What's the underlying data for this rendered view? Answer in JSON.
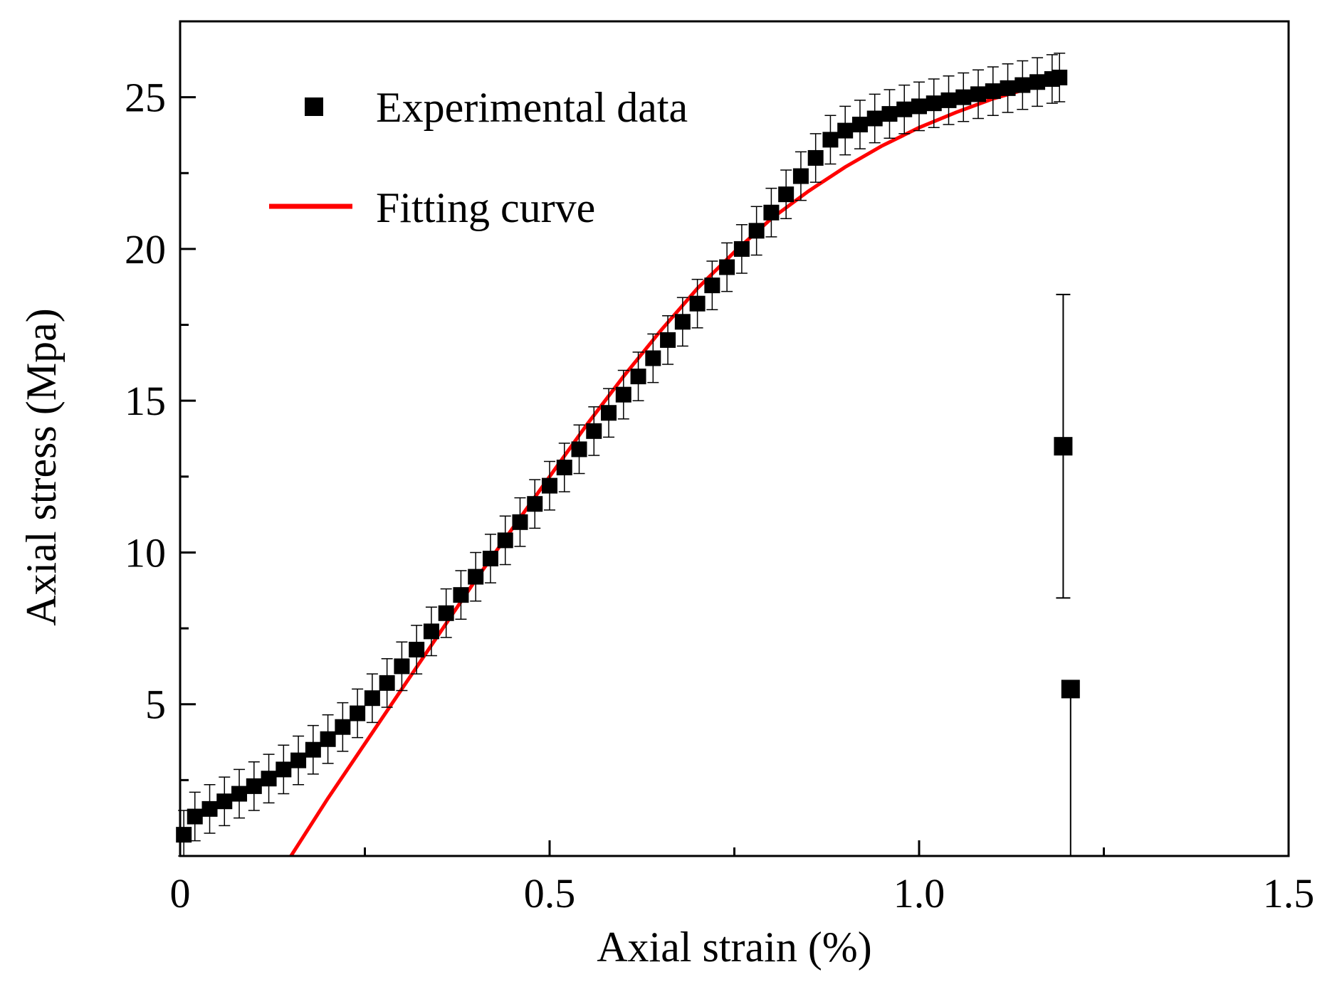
{
  "chart_data": {
    "type": "scatter",
    "title": "",
    "xlabel": "Axial strain (%)",
    "ylabel": "Axial stress (Mpa)",
    "xlim": [
      0,
      1.5
    ],
    "ylim": [
      0,
      27.5
    ],
    "x_ticks": [
      0,
      0.5,
      1.0,
      1.5
    ],
    "x_tick_labels": [
      "0",
      "0.5",
      "1.0",
      "1.5"
    ],
    "y_ticks": [
      5,
      10,
      15,
      20,
      25
    ],
    "y_tick_labels": [
      "5",
      "10",
      "15",
      "20",
      "25"
    ],
    "grid": false,
    "legend_position": "top-left",
    "colors": {
      "experimental": "#000000",
      "fitting": "#ff0000",
      "axis": "#000000"
    },
    "series": [
      {
        "name": "Experimental data",
        "kind": "markers-with-error-bars",
        "marker": "square",
        "x": [
          0.005,
          0.02,
          0.04,
          0.06,
          0.08,
          0.1,
          0.12,
          0.14,
          0.16,
          0.18,
          0.2,
          0.22,
          0.24,
          0.26,
          0.28,
          0.3,
          0.32,
          0.34,
          0.36,
          0.38,
          0.4,
          0.42,
          0.44,
          0.46,
          0.48,
          0.5,
          0.52,
          0.54,
          0.56,
          0.58,
          0.6,
          0.62,
          0.64,
          0.66,
          0.68,
          0.7,
          0.72,
          0.74,
          0.76,
          0.78,
          0.8,
          0.82,
          0.84,
          0.86,
          0.88,
          0.9,
          0.92,
          0.94,
          0.96,
          0.98,
          1.0,
          1.02,
          1.04,
          1.06,
          1.08,
          1.1,
          1.12,
          1.14,
          1.16,
          1.18,
          1.19
        ],
        "y": [
          0.7,
          1.3,
          1.55,
          1.8,
          2.05,
          2.3,
          2.55,
          2.85,
          3.15,
          3.5,
          3.85,
          4.25,
          4.7,
          5.2,
          5.7,
          6.25,
          6.8,
          7.4,
          8.0,
          8.6,
          9.2,
          9.8,
          10.4,
          11.0,
          11.6,
          12.2,
          12.8,
          13.4,
          14.0,
          14.6,
          15.2,
          15.8,
          16.4,
          17.0,
          17.6,
          18.2,
          18.8,
          19.4,
          20.0,
          20.6,
          21.2,
          21.8,
          22.4,
          23.0,
          23.6,
          23.9,
          24.1,
          24.3,
          24.45,
          24.6,
          24.7,
          24.8,
          24.9,
          25.0,
          25.1,
          25.2,
          25.3,
          25.4,
          25.5,
          25.6,
          25.65
        ],
        "error": 0.8
      },
      {
        "name": "Fitting curve",
        "kind": "line",
        "x": [
          0.15,
          0.2,
          0.25,
          0.3,
          0.35,
          0.4,
          0.45,
          0.5,
          0.55,
          0.6,
          0.65,
          0.7,
          0.75,
          0.8,
          0.85,
          0.9,
          0.95,
          1.0,
          1.05,
          1.1,
          1.15,
          1.19
        ],
        "y": [
          0,
          1.9,
          3.7,
          5.5,
          7.3,
          9.1,
          10.8,
          12.5,
          14.2,
          15.8,
          17.3,
          18.7,
          19.9,
          21.0,
          21.9,
          22.7,
          23.4,
          24.0,
          24.5,
          24.95,
          25.3,
          25.6
        ]
      }
    ],
    "annotation_points": [
      {
        "x": 1.195,
        "y": 13.5,
        "err_low": 5.0,
        "err_high": 5.0
      },
      {
        "x": 1.205,
        "y": 5.5,
        "err_low": 5.5,
        "err_high": 0
      }
    ],
    "legend": [
      {
        "label": "Experimental data",
        "symbol": "square"
      },
      {
        "label": "Fitting curve",
        "symbol": "line"
      }
    ]
  }
}
